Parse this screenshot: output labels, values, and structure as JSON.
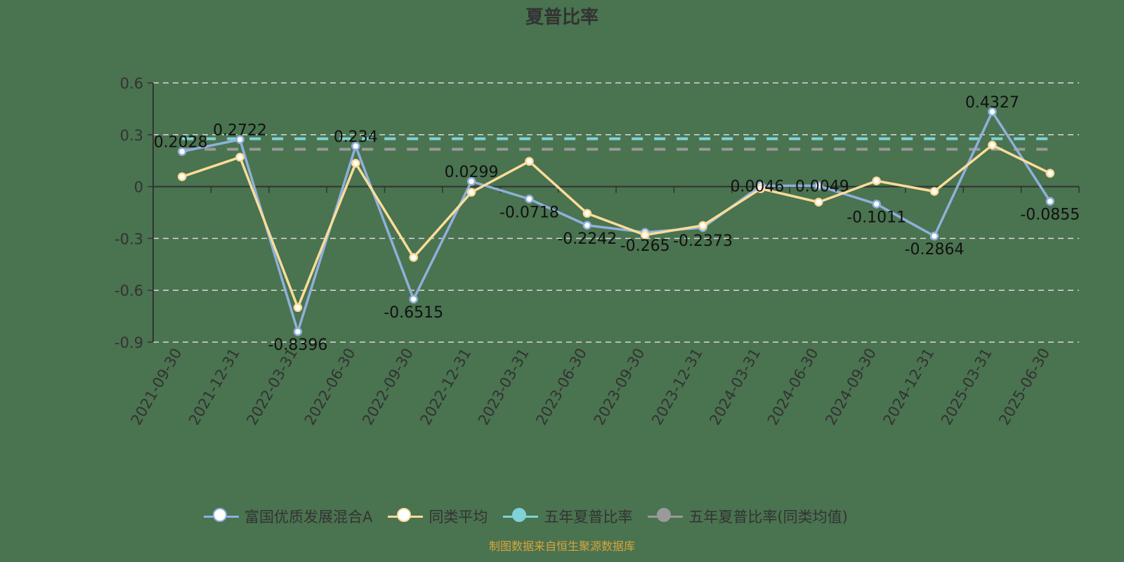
{
  "title": "夏普比率",
  "legend": [
    {
      "label": "富国优质发展混合A",
      "color": "#8fb0db",
      "fill": "#ffffff"
    },
    {
      "label": "同类平均",
      "color": "#fbdc9a",
      "fill": "#ffffff"
    },
    {
      "label": "五年夏普比率",
      "color": "#7fd3d6",
      "fill": "#7fd3d6"
    },
    {
      "label": "五年夏普比率(同类均值)",
      "color": "#9a9a9a",
      "fill": "#9a9a9a"
    }
  ],
  "source": "制图数据来自恒生聚源数据库",
  "chart_data": {
    "type": "line",
    "title": "夏普比率",
    "xlabel": "",
    "ylabel": "",
    "ylim": [
      -0.9,
      0.6
    ],
    "yticks": [
      0.6,
      0.3,
      0,
      -0.3,
      -0.6,
      -0.9
    ],
    "grid": true,
    "legend_position": "bottom",
    "categories": [
      "2021-09-30",
      "2021-12-31",
      "2022-03-31",
      "2022-06-30",
      "2022-09-30",
      "2022-12-31",
      "2023-03-31",
      "2023-06-30",
      "2023-09-30",
      "2023-12-31",
      "2024-03-31",
      "2024-06-30",
      "2024-09-30",
      "2024-12-31",
      "2025-03-31",
      "2025-06-30"
    ],
    "series": [
      {
        "name": "富国优质发展混合A",
        "color": "#8fb0db",
        "labeled": true,
        "values": [
          0.2028,
          0.2722,
          -0.8396,
          0.234,
          -0.6515,
          0.0299,
          -0.0718,
          -0.2242,
          -0.265,
          -0.2373,
          0.0046,
          0.0049,
          -0.1011,
          -0.2864,
          0.4327,
          -0.0855
        ],
        "labels": [
          "0.2028",
          "0.2722",
          "-0.8396",
          "0.234",
          "-0.6515",
          "0.0299",
          "-0.0718",
          "-0.2242",
          "-0.265",
          "-0.2373",
          "0.0046",
          "0.0049",
          "-0.1011",
          "-0.2864",
          "0.4327",
          "-0.0855"
        ]
      },
      {
        "name": "同类平均",
        "color": "#fbdc9a",
        "labeled": false,
        "values": [
          0.057,
          0.17,
          -0.7,
          0.135,
          -0.41,
          -0.033,
          0.146,
          -0.155,
          -0.28,
          -0.225,
          -0.012,
          -0.09,
          0.033,
          -0.028,
          0.24,
          0.077
        ]
      },
      {
        "name": "五年夏普比率",
        "color": "#7fd3d6",
        "type": "constant",
        "value": 0.277
      },
      {
        "name": "五年夏普比率(同类均值)",
        "color": "#9a9a9a",
        "type": "constant",
        "value": 0.216
      }
    ]
  }
}
